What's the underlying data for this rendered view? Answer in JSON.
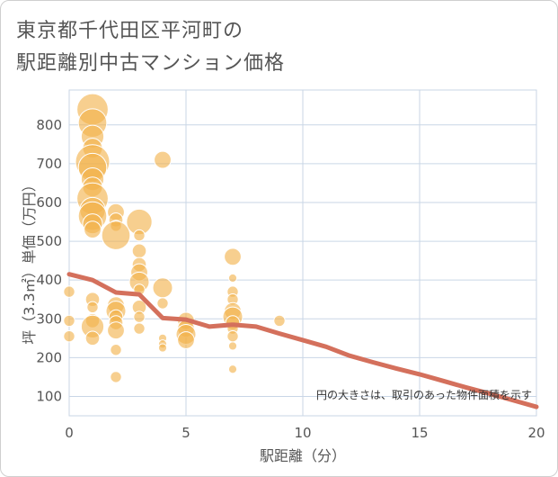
{
  "title_line1": "東京都千代田区平河町の",
  "title_line2": "駅距離別中古マンション価格",
  "note": "円の大きさは、取引のあった物件面積を示す",
  "colors": {
    "bubble": "#f2b24a",
    "line": "#d4705c",
    "grid": "#c9d6e6",
    "text": "#555555"
  },
  "chart_data": {
    "type": "scatter",
    "xlabel": "駅距離（分）",
    "ylabel": "坪（3.3㎡）単価（万円）",
    "xlim": [
      0,
      20
    ],
    "ylim": [
      50,
      890
    ],
    "xticks": [
      "0",
      "5",
      "10",
      "15",
      "20"
    ],
    "yticks": [
      "100",
      "200",
      "300",
      "400",
      "500",
      "600",
      "700",
      "800"
    ],
    "bubbles": [
      {
        "x": 0,
        "y": 370,
        "size": 2
      },
      {
        "x": 0,
        "y": 295,
        "size": 2
      },
      {
        "x": 0,
        "y": 255,
        "size": 2
      },
      {
        "x": 1,
        "y": 840,
        "size": 9
      },
      {
        "x": 1,
        "y": 805,
        "size": 8
      },
      {
        "x": 1,
        "y": 770,
        "size": 6
      },
      {
        "x": 1,
        "y": 740,
        "size": 5
      },
      {
        "x": 1,
        "y": 705,
        "size": 10
      },
      {
        "x": 1,
        "y": 690,
        "size": 8
      },
      {
        "x": 1,
        "y": 660,
        "size": 6
      },
      {
        "x": 1,
        "y": 640,
        "size": 5
      },
      {
        "x": 1,
        "y": 610,
        "size": 9
      },
      {
        "x": 1,
        "y": 580,
        "size": 7
      },
      {
        "x": 1,
        "y": 565,
        "size": 8
      },
      {
        "x": 1,
        "y": 545,
        "size": 5
      },
      {
        "x": 1,
        "y": 530,
        "size": 4
      },
      {
        "x": 1,
        "y": 350,
        "size": 3
      },
      {
        "x": 1,
        "y": 330,
        "size": 2
      },
      {
        "x": 1,
        "y": 295,
        "size": 3
      },
      {
        "x": 1,
        "y": 280,
        "size": 6
      },
      {
        "x": 1,
        "y": 250,
        "size": 3
      },
      {
        "x": 2,
        "y": 575,
        "size": 4
      },
      {
        "x": 2,
        "y": 555,
        "size": 3
      },
      {
        "x": 2,
        "y": 540,
        "size": 2
      },
      {
        "x": 2,
        "y": 515,
        "size": 8
      },
      {
        "x": 2,
        "y": 335,
        "size": 4
      },
      {
        "x": 2,
        "y": 320,
        "size": 5
      },
      {
        "x": 2,
        "y": 305,
        "size": 3
      },
      {
        "x": 2,
        "y": 290,
        "size": 3
      },
      {
        "x": 2,
        "y": 270,
        "size": 4
      },
      {
        "x": 2,
        "y": 220,
        "size": 2
      },
      {
        "x": 2,
        "y": 150,
        "size": 2
      },
      {
        "x": 3,
        "y": 550,
        "size": 7
      },
      {
        "x": 3,
        "y": 515,
        "size": 2
      },
      {
        "x": 3,
        "y": 475,
        "size": 3
      },
      {
        "x": 3,
        "y": 440,
        "size": 3
      },
      {
        "x": 3,
        "y": 420,
        "size": 4
      },
      {
        "x": 3,
        "y": 395,
        "size": 5
      },
      {
        "x": 3,
        "y": 375,
        "size": 2
      },
      {
        "x": 3,
        "y": 330,
        "size": 3
      },
      {
        "x": 3,
        "y": 305,
        "size": 2
      },
      {
        "x": 3,
        "y": 275,
        "size": 2
      },
      {
        "x": 4,
        "y": 710,
        "size": 4
      },
      {
        "x": 4,
        "y": 380,
        "size": 5
      },
      {
        "x": 4,
        "y": 340,
        "size": 2
      },
      {
        "x": 4,
        "y": 250,
        "size": 1
      },
      {
        "x": 4,
        "y": 235,
        "size": 1
      },
      {
        "x": 4,
        "y": 225,
        "size": 1
      },
      {
        "x": 5,
        "y": 295,
        "size": 4
      },
      {
        "x": 5,
        "y": 275,
        "size": 4
      },
      {
        "x": 5,
        "y": 260,
        "size": 5
      },
      {
        "x": 5,
        "y": 245,
        "size": 4
      },
      {
        "x": 7,
        "y": 460,
        "size": 4
      },
      {
        "x": 7,
        "y": 405,
        "size": 1
      },
      {
        "x": 7,
        "y": 370,
        "size": 2
      },
      {
        "x": 7,
        "y": 350,
        "size": 2
      },
      {
        "x": 7,
        "y": 320,
        "size": 4
      },
      {
        "x": 7,
        "y": 305,
        "size": 5
      },
      {
        "x": 7,
        "y": 290,
        "size": 3
      },
      {
        "x": 7,
        "y": 275,
        "size": 2
      },
      {
        "x": 7,
        "y": 255,
        "size": 2
      },
      {
        "x": 7,
        "y": 230,
        "size": 1
      },
      {
        "x": 7,
        "y": 170,
        "size": 1
      },
      {
        "x": 9,
        "y": 295,
        "size": 2
      }
    ],
    "series": [
      {
        "type": "line",
        "x": [
          0,
          1,
          2,
          3,
          4,
          5,
          6,
          7,
          8,
          9,
          10,
          11,
          12,
          13,
          14,
          15,
          16,
          17,
          18,
          19,
          20
        ],
        "y": [
          415,
          400,
          368,
          363,
          302,
          298,
          280,
          285,
          280,
          262,
          245,
          228,
          205,
          188,
          172,
          157,
          140,
          123,
          107,
          90,
          73
        ]
      }
    ]
  }
}
